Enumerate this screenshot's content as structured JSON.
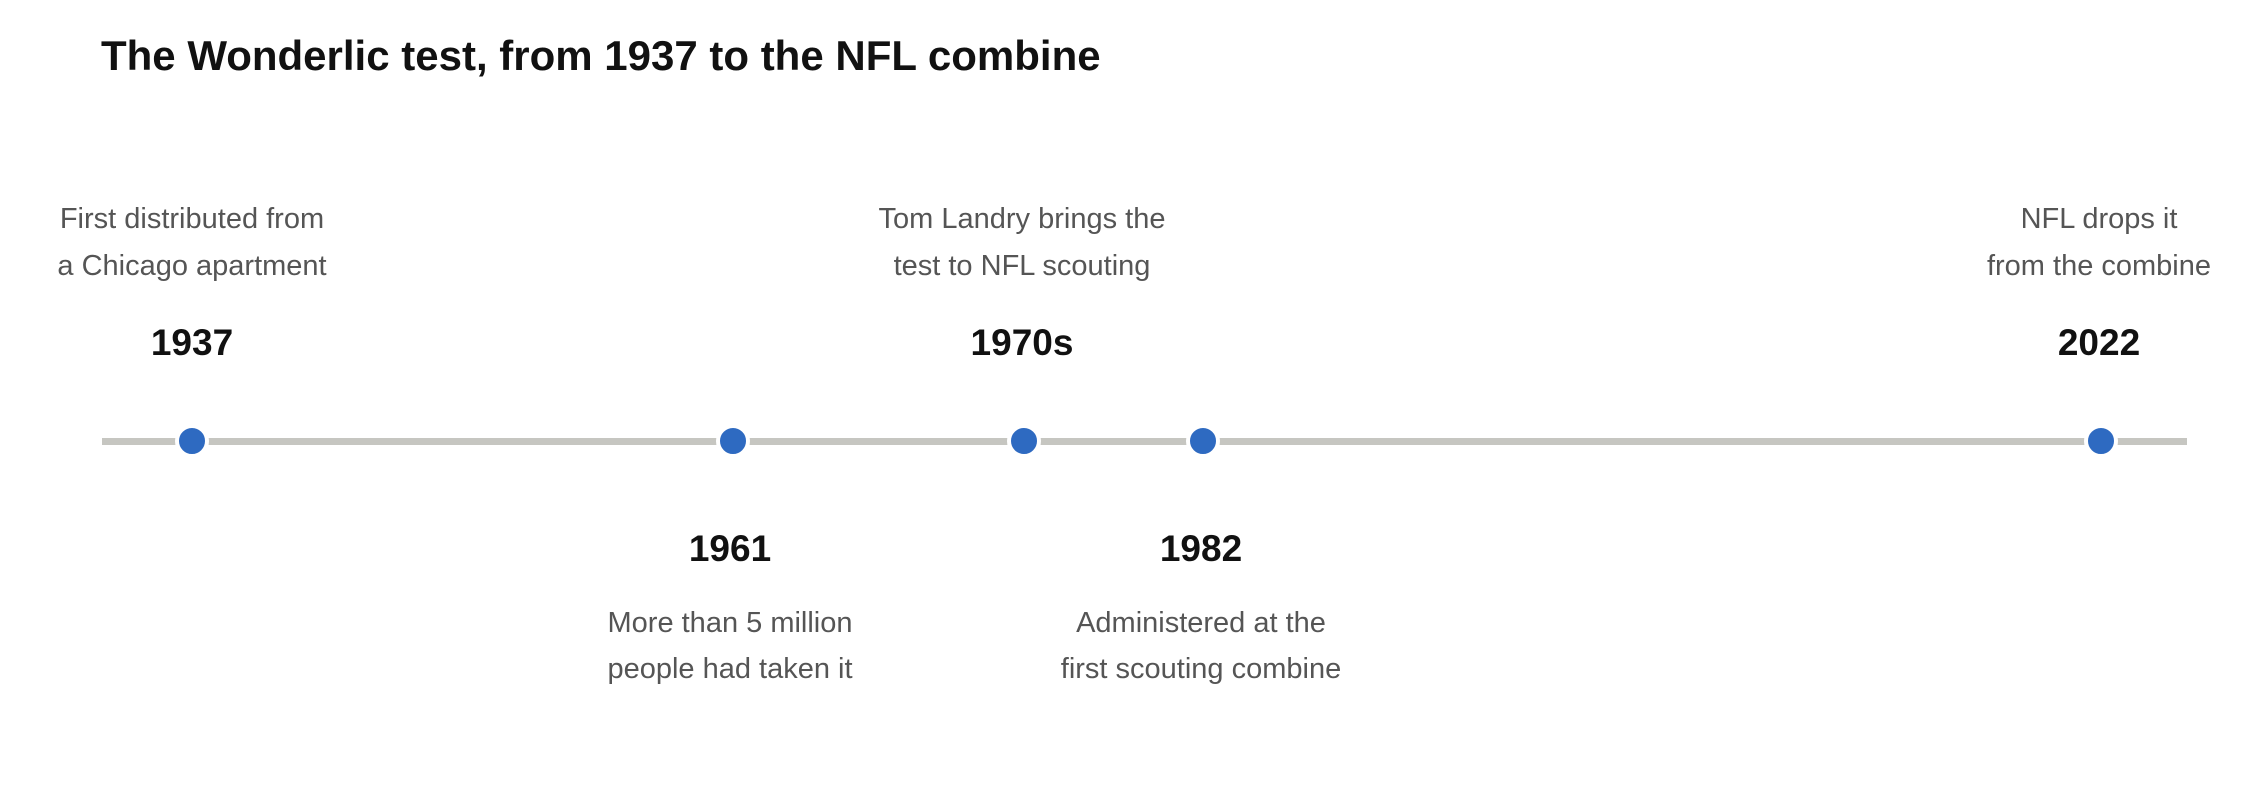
{
  "title": "The Wonderlic test, from 1937 to the NFL combine",
  "colors": {
    "axis": "#c6c6c1",
    "marker": "#2e6ac1",
    "year_text": "#111111",
    "caption_text": "#555555"
  },
  "events": [
    {
      "year": "1937",
      "position": "above",
      "caption": [
        "First distributed from",
        "a Chicago apartment"
      ]
    },
    {
      "year": "1961",
      "position": "below",
      "caption": [
        "More than 5 million",
        "people had taken it"
      ]
    },
    {
      "year": "1970s",
      "position": "above",
      "caption": [
        "Tom Landry brings the",
        "test to NFL scouting"
      ]
    },
    {
      "year": "1982",
      "position": "below",
      "caption": [
        "Administered at the",
        "first scouting combine"
      ]
    },
    {
      "year": "2022",
      "position": "above",
      "caption": [
        "NFL drops it",
        "from the combine"
      ]
    }
  ]
}
